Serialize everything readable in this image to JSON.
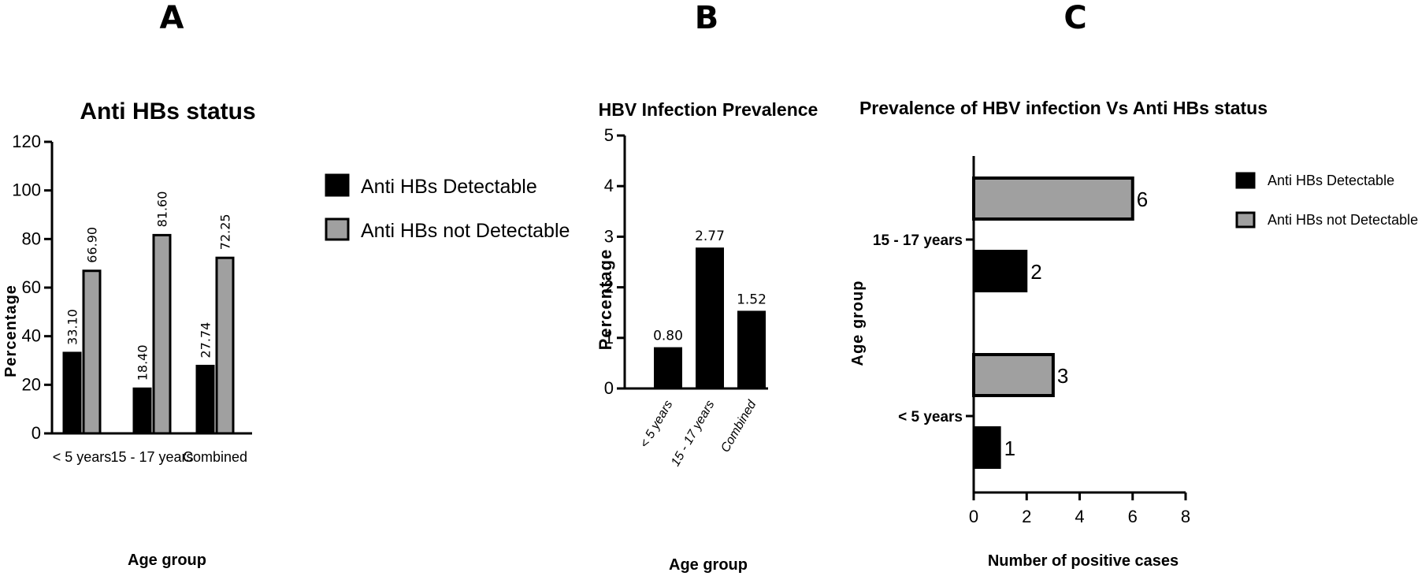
{
  "panel_labels": [
    "A",
    "B",
    "C"
  ],
  "colors": {
    "detectable": "#000000",
    "not_detectable": "#a0a0a0",
    "outline": "#000000"
  },
  "chart_data": [
    {
      "panel": "A",
      "type": "bar",
      "title": "Anti HBs status",
      "xlabel": "Age group",
      "ylabel": "Percentage",
      "ylim": [
        0,
        120
      ],
      "yticks": [
        0,
        20,
        40,
        60,
        80,
        100,
        120
      ],
      "categories": [
        "< 5 years",
        "15 - 17 years",
        "Combined"
      ],
      "series": [
        {
          "name": "Anti HBs Detectable",
          "values": [
            33.1,
            18.4,
            27.74
          ],
          "labels": [
            "33.10",
            "18.40",
            "27.74"
          ]
        },
        {
          "name": "Anti HBs not Detectable",
          "values": [
            66.9,
            81.6,
            72.25
          ],
          "labels": [
            "66.90",
            "81.60",
            "72.25"
          ]
        }
      ],
      "legend": "right"
    },
    {
      "panel": "B",
      "type": "bar",
      "title": "HBV Infection Prevalence",
      "xlabel": "Age group",
      "ylabel": "Percentage",
      "ylim": [
        0,
        5
      ],
      "yticks": [
        0,
        1,
        2,
        3,
        4,
        5
      ],
      "categories": [
        "< 5 years",
        "15 - 17 years",
        "Combined"
      ],
      "values": [
        0.8,
        2.77,
        1.52
      ],
      "labels": [
        "0.80",
        "2.77",
        "1.52"
      ]
    },
    {
      "panel": "C",
      "type": "bar",
      "orientation": "horizontal",
      "title": "Prevalence of HBV infection Vs Anti HBs status",
      "xlabel": "Number of positive cases",
      "ylabel": "Age group",
      "xlim": [
        0,
        8
      ],
      "xticks": [
        0,
        2,
        4,
        6,
        8
      ],
      "categories": [
        "15 - 17 years",
        "< 5 years"
      ],
      "series": [
        {
          "name": "Anti HBs Detectable",
          "values": [
            2,
            1
          ],
          "labels": [
            "2",
            "1"
          ]
        },
        {
          "name": "Anti HBs not Detectable",
          "values": [
            6,
            3
          ],
          "labels": [
            "6",
            "3"
          ]
        }
      ],
      "legend": "right"
    }
  ]
}
